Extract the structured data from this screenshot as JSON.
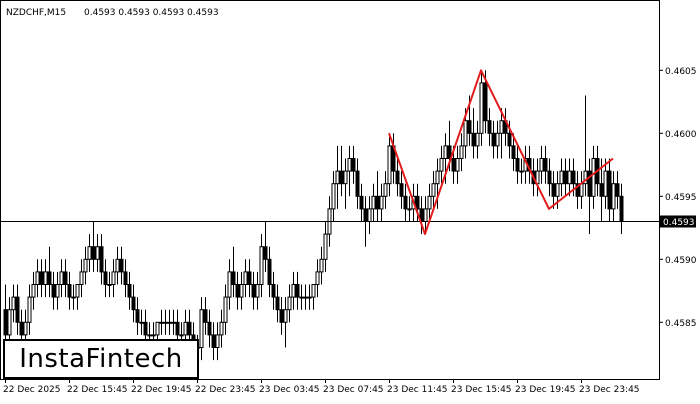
{
  "header": {
    "symbol": "NZDCHF,M15",
    "ohlc": "0.4593 0.4593 0.4593 0.4593"
  },
  "logo": {
    "text": "InstaFintech"
  },
  "chart_data": {
    "type": "candlestick",
    "symbol": "NZDCHF",
    "timeframe": "M15",
    "y_ticks": [
      "0.4605",
      "0.4600",
      "0.4595",
      "0.4590",
      "0.4585"
    ],
    "y_tick_values": [
      0.4605,
      0.46,
      0.4595,
      0.459,
      0.4585
    ],
    "ylim": [
      0.45805,
      0.46105
    ],
    "current_price": "0.4593",
    "current_price_value": 0.4593,
    "x_ticks": [
      "22 Dec 2025",
      "22 Dec 15:45",
      "22 Dec 19:45",
      "22 Dec 23:45",
      "23 Dec 03:45",
      "23 Dec 07:45",
      "23 Dec 11:45",
      "23 Dec 15:45",
      "23 Dec 19:45",
      "23 Dec 23:45"
    ],
    "x_tick_bar_index": [
      0,
      16,
      32,
      48,
      64,
      80,
      96,
      112,
      128,
      144
    ],
    "pattern": {
      "name": "Head and Shoulders",
      "color": "#e31b1b",
      "points": [
        {
          "bar": 96,
          "price": 0.46
        },
        {
          "bar": 105,
          "price": 0.4592
        },
        {
          "bar": 119,
          "price": 0.4605
        },
        {
          "bar": 136,
          "price": 0.4594
        },
        {
          "bar": 152,
          "price": 0.4598
        }
      ]
    },
    "candles": [
      [
        0.4586,
        0.4588,
        0.4583,
        0.4584
      ],
      [
        0.4584,
        0.4587,
        0.4583,
        0.4586
      ],
      [
        0.4586,
        0.4588,
        0.4585,
        0.4587
      ],
      [
        0.4587,
        0.4588,
        0.4584,
        0.4585
      ],
      [
        0.4585,
        0.4586,
        0.4583,
        0.4584
      ],
      [
        0.4584,
        0.4586,
        0.4583,
        0.4585
      ],
      [
        0.4585,
        0.4588,
        0.4584,
        0.4587
      ],
      [
        0.4587,
        0.4589,
        0.4586,
        0.4588
      ],
      [
        0.4588,
        0.459,
        0.4587,
        0.4589
      ],
      [
        0.4589,
        0.459,
        0.4587,
        0.4588
      ],
      [
        0.4588,
        0.459,
        0.4587,
        0.4589
      ],
      [
        0.4589,
        0.4591,
        0.4587,
        0.4588
      ],
      [
        0.4588,
        0.4589,
        0.4586,
        0.4587
      ],
      [
        0.4587,
        0.4589,
        0.4586,
        0.4588
      ],
      [
        0.4588,
        0.459,
        0.4587,
        0.4589
      ],
      [
        0.4589,
        0.459,
        0.4587,
        0.4588
      ],
      [
        0.4588,
        0.4589,
        0.4586,
        0.4587
      ],
      [
        0.4587,
        0.4588,
        0.4586,
        0.4587
      ],
      [
        0.4587,
        0.4588,
        0.4586,
        0.4588
      ],
      [
        0.4588,
        0.459,
        0.4587,
        0.4589
      ],
      [
        0.4589,
        0.4591,
        0.4588,
        0.459
      ],
      [
        0.459,
        0.4592,
        0.4589,
        0.4591
      ],
      [
        0.4591,
        0.4593,
        0.4589,
        0.459
      ],
      [
        0.459,
        0.4592,
        0.4589,
        0.4591
      ],
      [
        0.4591,
        0.4592,
        0.4588,
        0.4589
      ],
      [
        0.4589,
        0.459,
        0.4587,
        0.4588
      ],
      [
        0.4588,
        0.4589,
        0.4587,
        0.4588
      ],
      [
        0.4588,
        0.459,
        0.4587,
        0.4589
      ],
      [
        0.4589,
        0.4591,
        0.4588,
        0.459
      ],
      [
        0.459,
        0.4591,
        0.4588,
        0.4589
      ],
      [
        0.4589,
        0.459,
        0.4587,
        0.4588
      ],
      [
        0.4588,
        0.4589,
        0.4586,
        0.4587
      ],
      [
        0.4587,
        0.4588,
        0.4585,
        0.4586
      ],
      [
        0.4586,
        0.4587,
        0.4584,
        0.4585
      ],
      [
        0.4585,
        0.4586,
        0.4584,
        0.4585
      ],
      [
        0.4585,
        0.4586,
        0.4583,
        0.4584
      ],
      [
        0.4584,
        0.4585,
        0.4583,
        0.4584
      ],
      [
        0.4584,
        0.4585,
        0.4583,
        0.4584
      ],
      [
        0.4584,
        0.4585,
        0.4583,
        0.4585
      ],
      [
        0.4585,
        0.4586,
        0.4584,
        0.4585
      ],
      [
        0.4585,
        0.4586,
        0.4584,
        0.4585
      ],
      [
        0.4585,
        0.4586,
        0.4584,
        0.4585
      ],
      [
        0.4585,
        0.4586,
        0.4584,
        0.4585
      ],
      [
        0.4585,
        0.4586,
        0.4583,
        0.4584
      ],
      [
        0.4584,
        0.4585,
        0.4583,
        0.4584
      ],
      [
        0.4584,
        0.4586,
        0.4583,
        0.4585
      ],
      [
        0.4585,
        0.4586,
        0.4583,
        0.4584
      ],
      [
        0.4584,
        0.4585,
        0.4582,
        0.4583
      ],
      [
        0.4583,
        0.4584,
        0.4582,
        0.4583
      ],
      [
        0.4583,
        0.4587,
        0.4582,
        0.4586
      ],
      [
        0.4586,
        0.4587,
        0.4584,
        0.4585
      ],
      [
        0.4585,
        0.4586,
        0.4583,
        0.4584
      ],
      [
        0.4584,
        0.4585,
        0.4582,
        0.4583
      ],
      [
        0.4583,
        0.4585,
        0.4582,
        0.4584
      ],
      [
        0.4584,
        0.4586,
        0.4583,
        0.4585
      ],
      [
        0.4585,
        0.4588,
        0.4584,
        0.4587
      ],
      [
        0.4587,
        0.459,
        0.4586,
        0.4589
      ],
      [
        0.4589,
        0.4591,
        0.4587,
        0.4588
      ],
      [
        0.4588,
        0.4589,
        0.4586,
        0.4587
      ],
      [
        0.4587,
        0.4589,
        0.4586,
        0.4588
      ],
      [
        0.4588,
        0.459,
        0.4587,
        0.4589
      ],
      [
        0.4589,
        0.459,
        0.4587,
        0.4588
      ],
      [
        0.4588,
        0.4589,
        0.4586,
        0.4587
      ],
      [
        0.4587,
        0.4589,
        0.4586,
        0.4588
      ],
      [
        0.4588,
        0.4592,
        0.4587,
        0.4591
      ],
      [
        0.4591,
        0.4593,
        0.4589,
        0.459
      ],
      [
        0.459,
        0.4591,
        0.4587,
        0.4588
      ],
      [
        0.4588,
        0.4589,
        0.4586,
        0.4587
      ],
      [
        0.4587,
        0.4588,
        0.4585,
        0.4586
      ],
      [
        0.4586,
        0.4587,
        0.4584,
        0.4585
      ],
      [
        0.4585,
        0.4587,
        0.4583,
        0.4586
      ],
      [
        0.4586,
        0.4588,
        0.4585,
        0.4587
      ],
      [
        0.4587,
        0.4589,
        0.4586,
        0.4588
      ],
      [
        0.4588,
        0.4589,
        0.4586,
        0.4587
      ],
      [
        0.4587,
        0.4588,
        0.4586,
        0.4587
      ],
      [
        0.4587,
        0.4588,
        0.4586,
        0.4587
      ],
      [
        0.4587,
        0.4588,
        0.4586,
        0.4587
      ],
      [
        0.4587,
        0.4588,
        0.4586,
        0.4588
      ],
      [
        0.4588,
        0.459,
        0.4587,
        0.4589
      ],
      [
        0.4589,
        0.4591,
        0.4588,
        0.459
      ],
      [
        0.459,
        0.4593,
        0.4589,
        0.4592
      ],
      [
        0.4592,
        0.4595,
        0.4591,
        0.4594
      ],
      [
        0.4594,
        0.4597,
        0.4593,
        0.4596
      ],
      [
        0.4596,
        0.4599,
        0.4594,
        0.4597
      ],
      [
        0.4597,
        0.4599,
        0.4595,
        0.4596
      ],
      [
        0.4596,
        0.4598,
        0.4594,
        0.4597
      ],
      [
        0.4597,
        0.4599,
        0.4595,
        0.4598
      ],
      [
        0.4598,
        0.4599,
        0.4596,
        0.4597
      ],
      [
        0.4597,
        0.4598,
        0.4594,
        0.4595
      ],
      [
        0.4595,
        0.4596,
        0.4593,
        0.4594
      ],
      [
        0.4594,
        0.4595,
        0.4591,
        0.4593
      ],
      [
        0.4593,
        0.4595,
        0.4592,
        0.4594
      ],
      [
        0.4594,
        0.4596,
        0.4593,
        0.4595
      ],
      [
        0.4595,
        0.4597,
        0.4593,
        0.4594
      ],
      [
        0.4594,
        0.4596,
        0.4593,
        0.4595
      ],
      [
        0.4595,
        0.4597,
        0.4594,
        0.4596
      ],
      [
        0.4596,
        0.46,
        0.4595,
        0.4599
      ],
      [
        0.4599,
        0.46,
        0.4596,
        0.4597
      ],
      [
        0.4597,
        0.4598,
        0.4595,
        0.4596
      ],
      [
        0.4596,
        0.4597,
        0.4594,
        0.4595
      ],
      [
        0.4595,
        0.4596,
        0.4593,
        0.4594
      ],
      [
        0.4594,
        0.4595,
        0.4593,
        0.4594
      ],
      [
        0.4594,
        0.4596,
        0.4593,
        0.4595
      ],
      [
        0.4595,
        0.4596,
        0.4593,
        0.4594
      ],
      [
        0.4594,
        0.4595,
        0.4592,
        0.4593
      ],
      [
        0.4593,
        0.4595,
        0.4592,
        0.4594
      ],
      [
        0.4594,
        0.4596,
        0.4593,
        0.4595
      ],
      [
        0.4595,
        0.4597,
        0.4594,
        0.4596
      ],
      [
        0.4596,
        0.4598,
        0.4594,
        0.4597
      ],
      [
        0.4597,
        0.4599,
        0.4596,
        0.4598
      ],
      [
        0.4598,
        0.46,
        0.4596,
        0.4599
      ],
      [
        0.4599,
        0.4601,
        0.4597,
        0.4598
      ],
      [
        0.4598,
        0.4599,
        0.4596,
        0.4597
      ],
      [
        0.4597,
        0.4599,
        0.4596,
        0.4598
      ],
      [
        0.4598,
        0.46,
        0.4597,
        0.4599
      ],
      [
        0.4599,
        0.4602,
        0.4598,
        0.4601
      ],
      [
        0.4601,
        0.4603,
        0.4599,
        0.46
      ],
      [
        0.46,
        0.4602,
        0.4598,
        0.4599
      ],
      [
        0.4599,
        0.4601,
        0.4598,
        0.46
      ],
      [
        0.46,
        0.4605,
        0.4599,
        0.4604
      ],
      [
        0.4604,
        0.4605,
        0.46,
        0.4601
      ],
      [
        0.4601,
        0.4602,
        0.4599,
        0.46
      ],
      [
        0.46,
        0.4601,
        0.4598,
        0.4599
      ],
      [
        0.4599,
        0.4601,
        0.4598,
        0.46
      ],
      [
        0.46,
        0.4602,
        0.4598,
        0.4601
      ],
      [
        0.4601,
        0.4602,
        0.4599,
        0.46
      ],
      [
        0.46,
        0.4601,
        0.4598,
        0.4599
      ],
      [
        0.4599,
        0.46,
        0.4597,
        0.4598
      ],
      [
        0.4598,
        0.4599,
        0.4596,
        0.4597
      ],
      [
        0.4597,
        0.4598,
        0.4596,
        0.4597
      ],
      [
        0.4597,
        0.4599,
        0.4596,
        0.4598
      ],
      [
        0.4598,
        0.4599,
        0.4596,
        0.4597
      ],
      [
        0.4597,
        0.4598,
        0.4595,
        0.4596
      ],
      [
        0.4596,
        0.4598,
        0.4595,
        0.4597
      ],
      [
        0.4597,
        0.4599,
        0.4596,
        0.4598
      ],
      [
        0.4598,
        0.4599,
        0.4596,
        0.4597
      ],
      [
        0.4597,
        0.4598,
        0.4595,
        0.4596
      ],
      [
        0.4596,
        0.4597,
        0.4594,
        0.4595
      ],
      [
        0.4595,
        0.4597,
        0.4594,
        0.4596
      ],
      [
        0.4596,
        0.4598,
        0.4595,
        0.4597
      ],
      [
        0.4597,
        0.4598,
        0.4595,
        0.4596
      ],
      [
        0.4596,
        0.4598,
        0.4595,
        0.4597
      ],
      [
        0.4597,
        0.4598,
        0.4595,
        0.4596
      ],
      [
        0.4596,
        0.4597,
        0.4594,
        0.4595
      ],
      [
        0.4595,
        0.4597,
        0.4594,
        0.4596
      ],
      [
        0.4596,
        0.4603,
        0.4595,
        0.4597
      ],
      [
        0.4597,
        0.4598,
        0.4592,
        0.4595
      ],
      [
        0.4595,
        0.4599,
        0.4594,
        0.4598
      ],
      [
        0.4598,
        0.4599,
        0.4595,
        0.4596
      ],
      [
        0.4596,
        0.4598,
        0.4593,
        0.4595
      ],
      [
        0.4595,
        0.4598,
        0.4594,
        0.4597
      ],
      [
        0.4597,
        0.4598,
        0.4593,
        0.4594
      ],
      [
        0.4594,
        0.4597,
        0.4593,
        0.4596
      ],
      [
        0.4596,
        0.4597,
        0.4594,
        0.4595
      ],
      [
        0.4595,
        0.4596,
        0.4592,
        0.4593
      ]
    ]
  }
}
